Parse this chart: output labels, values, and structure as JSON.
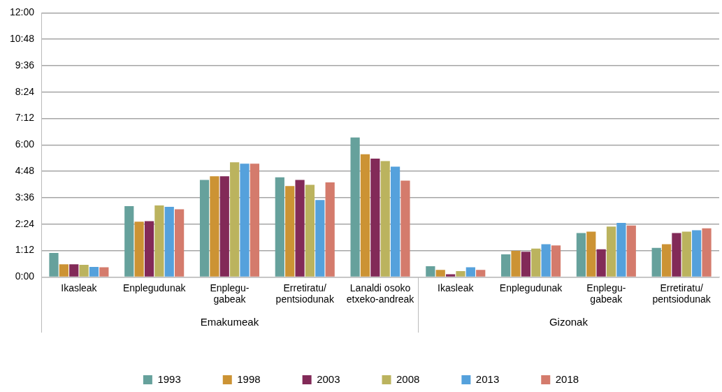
{
  "chart_data": {
    "type": "bar",
    "categories": [
      "Ikasleak",
      "Enplegudunak",
      "Enplegu-\ngabeak",
      "Erretiratu/\npentsiodunak",
      "Lanaldi osoko\netxeko-andreak",
      "Ikasleak",
      "Enplegudunak",
      "Enplegu-\ngabeak",
      "Erretiratu/\npentsiodunak"
    ],
    "series": [
      {
        "name": "1993",
        "color": "#66a19c",
        "values": [
          1.09,
          3.22,
          4.41,
          4.53,
          6.34,
          0.49,
          1.03,
          2.0,
          1.32
        ]
      },
      {
        "name": "1998",
        "color": "#cc9334",
        "values": [
          0.58,
          2.51,
          4.58,
          4.13,
          5.58,
          0.32,
          1.19,
          2.06,
          1.49
        ]
      },
      {
        "name": "2003",
        "color": "#822a58",
        "values": [
          0.58,
          2.54,
          4.58,
          4.41,
          5.38,
          0.12,
          1.15,
          1.26,
          2.0
        ]
      },
      {
        "name": "2008",
        "color": "#bbb35e",
        "values": [
          0.55,
          3.25,
          5.21,
          4.19,
          5.27,
          0.27,
          1.29,
          2.29,
          2.06
        ]
      },
      {
        "name": "2013",
        "color": "#55a1dc",
        "values": [
          0.46,
          3.19,
          5.15,
          3.5,
          5.01,
          0.44,
          1.49,
          2.46,
          2.12
        ]
      },
      {
        "name": "2018",
        "color": "#d47b6c",
        "values": [
          0.44,
          3.08,
          5.15,
          4.3,
          4.38,
          0.32,
          1.43,
          2.34,
          2.21
        ]
      }
    ],
    "ylim": [
      0,
      12
    ],
    "yticks": [
      {
        "value": 0,
        "label": "0:00"
      },
      {
        "value": 1.2,
        "label": "1:12"
      },
      {
        "value": 2.4,
        "label": "2:24"
      },
      {
        "value": 3.6,
        "label": "3:36"
      },
      {
        "value": 4.8,
        "label": "4:48"
      },
      {
        "value": 6,
        "label": "6:00"
      },
      {
        "value": 7.2,
        "label": "7:12"
      },
      {
        "value": 8.4,
        "label": "8:24"
      },
      {
        "value": 9.6,
        "label": "9:36"
      },
      {
        "value": 10.8,
        "label": "10:48"
      },
      {
        "value": 12,
        "label": "12:00"
      }
    ],
    "annotations": [
      "Emakumeak",
      "Gizonak"
    ],
    "grid": "y",
    "legend": "bottom"
  }
}
